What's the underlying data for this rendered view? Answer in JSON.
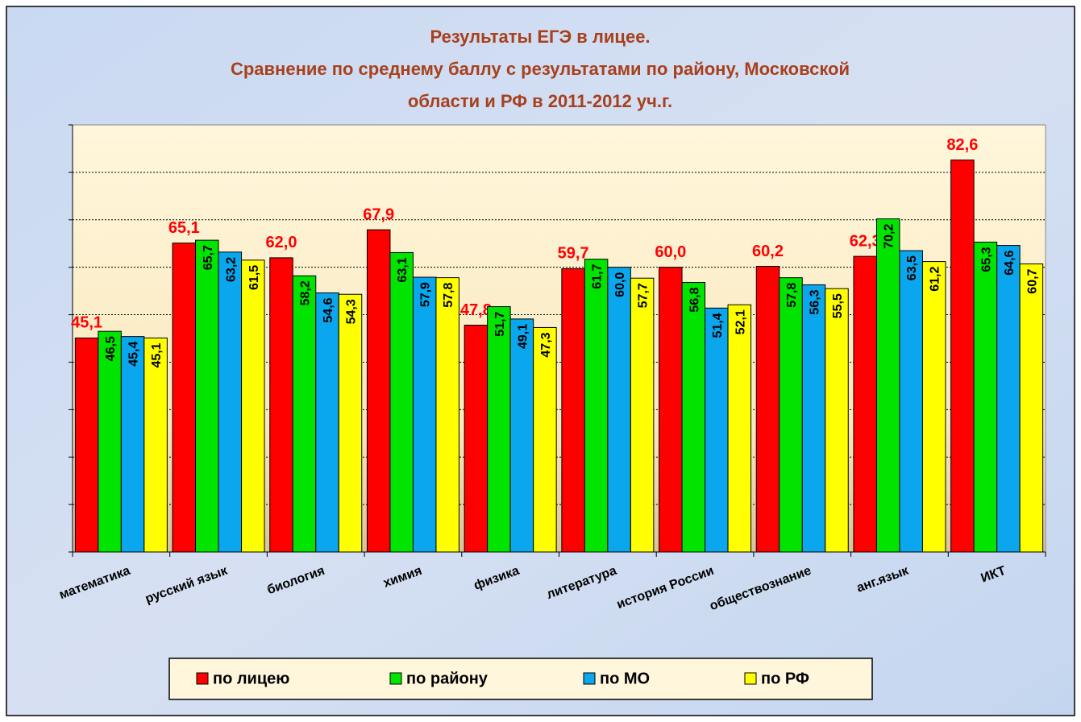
{
  "chart_data": {
    "type": "bar",
    "title": [
      "Результаты ЕГЭ в лицее.",
      "Сравнение по среднему баллу с результатами по району, Московской",
      "области и РФ в 2011-2012 уч.г."
    ],
    "categories": [
      "математика",
      "русский язык",
      "биология",
      "химия",
      "физика",
      "литература",
      "история России",
      "обществознание",
      "анг.язык",
      "ИКТ"
    ],
    "series": [
      {
        "name": "по лицею",
        "color": "#ff0000",
        "values": [
          45.1,
          65.1,
          62.0,
          67.9,
          47.8,
          59.7,
          60.0,
          60.2,
          62.3,
          82.6
        ],
        "value_labels": [
          "45,1",
          "65,1",
          "62,0",
          "67,9",
          "47,8",
          "59,7",
          "60,0",
          "60,2",
          "62,3",
          "82,6"
        ]
      },
      {
        "name": "по району",
        "color": "#00e400",
        "values": [
          46.5,
          65.7,
          58.2,
          63.1,
          51.7,
          61.7,
          56.8,
          57.8,
          70.2,
          65.3
        ],
        "value_labels": [
          "46,5",
          "65,7",
          "58,2",
          "63,1",
          "51,7",
          "61,7",
          "56,8",
          "57,8",
          "70,2",
          "65,3"
        ]
      },
      {
        "name": "по МО",
        "color": "#0aa6ee",
        "values": [
          45.4,
          63.2,
          54.6,
          57.9,
          49.1,
          60.0,
          51.4,
          56.3,
          63.5,
          64.6
        ],
        "value_labels": [
          "45,4",
          "63,2",
          "54,6",
          "57,9",
          "49,1",
          "60,0",
          "51,4",
          "56,3",
          "63,5",
          "64,6"
        ]
      },
      {
        "name": "по РФ",
        "color": "#ffff00",
        "values": [
          45.1,
          61.5,
          54.3,
          57.8,
          47.3,
          57.7,
          52.1,
          55.5,
          61.2,
          60.7
        ],
        "value_labels": [
          "45,1",
          "61,5",
          "54,3",
          "57,8",
          "47,3",
          "57,7",
          "52,1",
          "55,5",
          "61,2",
          "60,7"
        ]
      }
    ],
    "ylim": [
      0,
      90
    ],
    "yticks": [
      0,
      10,
      20,
      30,
      40,
      50,
      60,
      70,
      80,
      90
    ],
    "grid": true,
    "legend": "bottom"
  }
}
